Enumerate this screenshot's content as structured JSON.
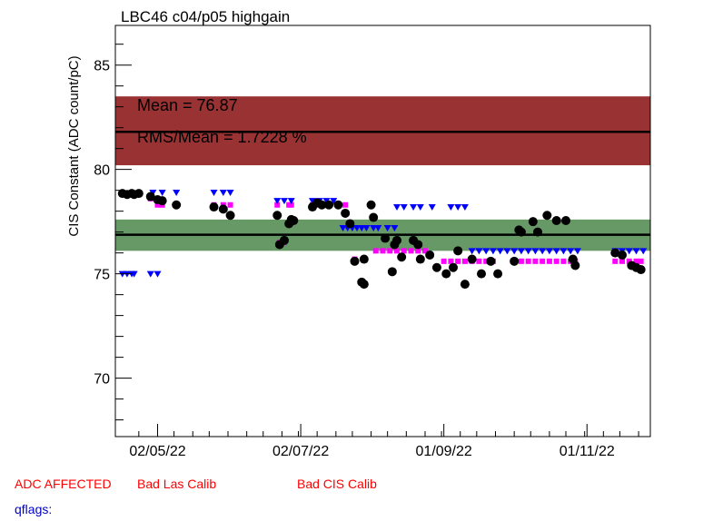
{
  "chart_data": {
    "type": "scatter",
    "title": "LBC46 c04/p05 highgain",
    "ylabel": "CIS Constant (ADC count/pC)",
    "xlabel": "",
    "ylim": [
      67.2,
      86.9
    ],
    "xlim": [
      "2022-04-14",
      "2022-11-28"
    ],
    "x_ticks": [
      {
        "label": "02/05/22",
        "date": "2022-05-02"
      },
      {
        "label": "02/07/22",
        "date": "2022-07-02"
      },
      {
        "label": "01/09/22",
        "date": "2022-09-01"
      },
      {
        "label": "01/11/22",
        "date": "2022-11-01"
      }
    ],
    "y_ticks": [
      70,
      75,
      80,
      85
    ],
    "grid": false,
    "mean_label": "Mean = 76.87",
    "rms_label": "RMS/Mean = 1.7228 %",
    "mean_value": 76.87,
    "mean_band": [
      76.1,
      77.6
    ],
    "red_band": [
      80.2,
      83.5
    ],
    "red_line": 81.8,
    "colors": {
      "measurement": "#000000",
      "magenta": "#ff00ff",
      "blue": "#0000ff",
      "red_band": "#993333",
      "green_band": "#669966"
    },
    "series": [
      {
        "marker": "circle",
        "color": "#000000",
        "points": [
          [
            "2022-04-17",
            78.85
          ],
          [
            "2022-04-19",
            78.8
          ],
          [
            "2022-04-21",
            78.85
          ],
          [
            "2022-04-22",
            78.8
          ],
          [
            "2022-04-24",
            78.85
          ],
          [
            "2022-04-29",
            78.7
          ],
          [
            "2022-05-02",
            78.55
          ],
          [
            "2022-05-04",
            78.5
          ],
          [
            "2022-05-10",
            78.3
          ],
          [
            "2022-05-26",
            78.2
          ],
          [
            "2022-05-30",
            78.1
          ],
          [
            "2022-06-02",
            77.8
          ],
          [
            "2022-06-22",
            77.8
          ],
          [
            "2022-06-23",
            76.4
          ],
          [
            "2022-06-25",
            76.6
          ],
          [
            "2022-06-27",
            77.4
          ],
          [
            "2022-06-28",
            77.6
          ],
          [
            "2022-06-29",
            77.55
          ],
          [
            "2022-07-07",
            78.2
          ],
          [
            "2022-07-09",
            78.4
          ],
          [
            "2022-07-11",
            78.3
          ],
          [
            "2022-07-14",
            78.3
          ],
          [
            "2022-07-18",
            78.3
          ],
          [
            "2022-07-21",
            77.9
          ],
          [
            "2022-07-23",
            77.4
          ],
          [
            "2022-07-25",
            75.6
          ],
          [
            "2022-07-28",
            74.6
          ],
          [
            "2022-07-29",
            74.5
          ],
          [
            "2022-07-29",
            75.7
          ],
          [
            "2022-08-01",
            78.3
          ],
          [
            "2022-08-02",
            77.7
          ],
          [
            "2022-08-07",
            76.7
          ],
          [
            "2022-08-10",
            75.1
          ],
          [
            "2022-08-11",
            76.4
          ],
          [
            "2022-08-12",
            76.6
          ],
          [
            "2022-08-14",
            75.8
          ],
          [
            "2022-08-19",
            76.6
          ],
          [
            "2022-08-21",
            76.4
          ],
          [
            "2022-08-22",
            75.7
          ],
          [
            "2022-08-26",
            75.9
          ],
          [
            "2022-08-29",
            75.3
          ],
          [
            "2022-09-02",
            75.0
          ],
          [
            "2022-09-05",
            75.3
          ],
          [
            "2022-09-07",
            76.1
          ],
          [
            "2022-09-10",
            74.5
          ],
          [
            "2022-09-13",
            75.7
          ],
          [
            "2022-09-17",
            75.0
          ],
          [
            "2022-09-21",
            75.6
          ],
          [
            "2022-09-24",
            75.0
          ],
          [
            "2022-10-01",
            75.6
          ],
          [
            "2022-10-03",
            77.1
          ],
          [
            "2022-10-04",
            77.0
          ],
          [
            "2022-10-09",
            77.5
          ],
          [
            "2022-10-11",
            77.0
          ],
          [
            "2022-10-15",
            77.8
          ],
          [
            "2022-10-19",
            77.55
          ],
          [
            "2022-10-23",
            77.55
          ],
          [
            "2022-10-26",
            75.7
          ],
          [
            "2022-10-27",
            75.4
          ],
          [
            "2022-11-13",
            76.0
          ],
          [
            "2022-11-16",
            75.9
          ],
          [
            "2022-11-20",
            75.4
          ],
          [
            "2022-11-22",
            75.3
          ],
          [
            "2022-11-24",
            75.2
          ]
        ]
      },
      {
        "marker": "square",
        "color": "#ff00ff",
        "points": [
          [
            "2022-04-17",
            78.8
          ],
          [
            "2022-04-19",
            78.8
          ],
          [
            "2022-04-21",
            78.8
          ],
          [
            "2022-04-22",
            78.8
          ],
          [
            "2022-04-24",
            78.8
          ],
          [
            "2022-04-29",
            78.6
          ],
          [
            "2022-05-02",
            78.3
          ],
          [
            "2022-05-04",
            78.3
          ],
          [
            "2022-05-10",
            78.3
          ],
          [
            "2022-05-26",
            78.3
          ],
          [
            "2022-05-30",
            78.3
          ],
          [
            "2022-06-02",
            78.3
          ],
          [
            "2022-06-22",
            78.3
          ],
          [
            "2022-06-23",
            76.5
          ],
          [
            "2022-06-25",
            76.5
          ],
          [
            "2022-06-27",
            78.3
          ],
          [
            "2022-06-28",
            78.3
          ],
          [
            "2022-07-07",
            78.3
          ],
          [
            "2022-07-09",
            78.3
          ],
          [
            "2022-07-11",
            78.3
          ],
          [
            "2022-07-14",
            78.3
          ],
          [
            "2022-07-18",
            78.3
          ],
          [
            "2022-07-21",
            78.3
          ],
          [
            "2022-07-25",
            75.7
          ],
          [
            "2022-08-03",
            76.1
          ],
          [
            "2022-08-06",
            76.1
          ],
          [
            "2022-08-09",
            76.1
          ],
          [
            "2022-08-12",
            76.1
          ],
          [
            "2022-08-15",
            76.1
          ],
          [
            "2022-08-18",
            76.1
          ],
          [
            "2022-08-21",
            76.1
          ],
          [
            "2022-08-24",
            76.1
          ],
          [
            "2022-09-01",
            75.6
          ],
          [
            "2022-09-04",
            75.6
          ],
          [
            "2022-09-07",
            75.6
          ],
          [
            "2022-09-10",
            75.6
          ],
          [
            "2022-09-13",
            75.6
          ],
          [
            "2022-09-16",
            75.6
          ],
          [
            "2022-09-19",
            75.6
          ],
          [
            "2022-09-22",
            75.6
          ],
          [
            "2022-10-01",
            75.6
          ],
          [
            "2022-10-04",
            75.6
          ],
          [
            "2022-10-07",
            75.6
          ],
          [
            "2022-10-10",
            75.6
          ],
          [
            "2022-10-13",
            75.6
          ],
          [
            "2022-10-16",
            75.6
          ],
          [
            "2022-10-19",
            75.6
          ],
          [
            "2022-10-22",
            75.6
          ],
          [
            "2022-10-25",
            75.6
          ],
          [
            "2022-10-27",
            75.6
          ],
          [
            "2022-11-13",
            75.6
          ],
          [
            "2022-11-16",
            75.6
          ],
          [
            "2022-11-19",
            75.6
          ],
          [
            "2022-11-22",
            75.6
          ],
          [
            "2022-11-24",
            75.6
          ]
        ]
      },
      {
        "marker": "triangle-down",
        "color": "#0000ff",
        "points": [
          [
            "2022-04-17",
            75.0
          ],
          [
            "2022-04-19",
            75.0
          ],
          [
            "2022-04-21",
            75.0
          ],
          [
            "2022-04-22",
            75.0
          ],
          [
            "2022-04-29",
            75.0
          ],
          [
            "2022-05-02",
            75.0
          ],
          [
            "2022-04-30",
            78.9
          ],
          [
            "2022-05-04",
            78.9
          ],
          [
            "2022-05-10",
            78.9
          ],
          [
            "2022-05-26",
            78.9
          ],
          [
            "2022-05-30",
            78.9
          ],
          [
            "2022-06-02",
            78.9
          ],
          [
            "2022-06-22",
            78.5
          ],
          [
            "2022-06-25",
            78.5
          ],
          [
            "2022-06-28",
            78.5
          ],
          [
            "2022-07-07",
            78.5
          ],
          [
            "2022-07-10",
            78.5
          ],
          [
            "2022-07-13",
            78.5
          ],
          [
            "2022-07-16",
            78.5
          ],
          [
            "2022-07-20",
            77.2
          ],
          [
            "2022-07-22",
            77.2
          ],
          [
            "2022-07-24",
            77.2
          ],
          [
            "2022-07-26",
            77.2
          ],
          [
            "2022-07-28",
            77.2
          ],
          [
            "2022-07-30",
            77.2
          ],
          [
            "2022-08-02",
            77.2
          ],
          [
            "2022-08-04",
            77.2
          ],
          [
            "2022-08-08",
            77.2
          ],
          [
            "2022-08-11",
            77.2
          ],
          [
            "2022-08-12",
            78.2
          ],
          [
            "2022-08-15",
            78.2
          ],
          [
            "2022-08-19",
            78.2
          ],
          [
            "2022-08-22",
            78.2
          ],
          [
            "2022-08-27",
            78.2
          ],
          [
            "2022-09-04",
            78.2
          ],
          [
            "2022-09-07",
            78.2
          ],
          [
            "2022-09-10",
            78.2
          ],
          [
            "2022-09-13",
            76.1
          ],
          [
            "2022-09-16",
            76.1
          ],
          [
            "2022-09-19",
            76.1
          ],
          [
            "2022-09-22",
            76.1
          ],
          [
            "2022-09-25",
            76.1
          ],
          [
            "2022-09-28",
            76.1
          ],
          [
            "2022-10-01",
            76.1
          ],
          [
            "2022-10-04",
            76.1
          ],
          [
            "2022-10-07",
            76.1
          ],
          [
            "2022-10-10",
            76.1
          ],
          [
            "2022-10-13",
            76.1
          ],
          [
            "2022-10-16",
            76.1
          ],
          [
            "2022-10-19",
            76.1
          ],
          [
            "2022-10-22",
            76.1
          ],
          [
            "2022-10-25",
            76.1
          ],
          [
            "2022-10-28",
            76.1
          ],
          [
            "2022-11-13",
            76.1
          ],
          [
            "2022-11-16",
            76.1
          ],
          [
            "2022-11-19",
            76.1
          ],
          [
            "2022-11-22",
            76.1
          ],
          [
            "2022-11-25",
            76.1
          ]
        ]
      }
    ]
  },
  "status": {
    "adc_affected": "ADC AFFECTED",
    "bad_las_calib": "Bad Las Calib",
    "bad_cis_calib": "Bad CIS Calib",
    "qflags_label": "qflags:"
  }
}
